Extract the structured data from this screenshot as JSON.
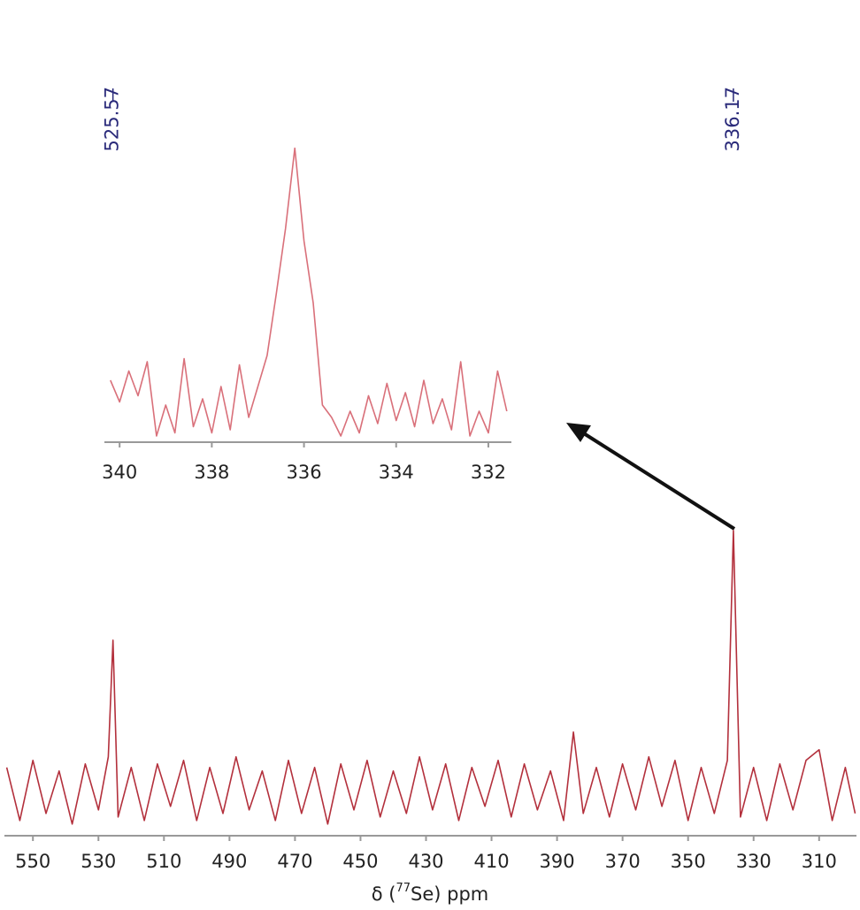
{
  "chart_data": [
    {
      "type": "line",
      "color": "#b3303c",
      "x": [
        558,
        554,
        550,
        546,
        542,
        538,
        534,
        530,
        527,
        525.57,
        524,
        520,
        516,
        512,
        508,
        504,
        500,
        496,
        492,
        488,
        484,
        480,
        476,
        472,
        468,
        464,
        460,
        456,
        452,
        448,
        444,
        440,
        436,
        432,
        428,
        424,
        420,
        416,
        412,
        408,
        404,
        400,
        396,
        392,
        388,
        385,
        382,
        378,
        374,
        370,
        366,
        362,
        358,
        354,
        350,
        346,
        342,
        338,
        336.17,
        334,
        330,
        326,
        322,
        318,
        314,
        310,
        306,
        302,
        299
      ],
      "values": [
        0.6,
        -0.9,
        0.8,
        -0.7,
        0.5,
        -1,
        0.7,
        -0.6,
        0.9,
        4.2,
        -0.8,
        0.6,
        -0.9,
        0.7,
        -0.5,
        0.8,
        -0.9,
        0.6,
        -0.7,
        0.9,
        -0.6,
        0.5,
        -0.9,
        0.8,
        -0.7,
        0.6,
        -1,
        0.7,
        -0.6,
        0.8,
        -0.8,
        0.5,
        -0.7,
        0.9,
        -0.6,
        0.7,
        -0.9,
        0.6,
        -0.5,
        0.8,
        -0.8,
        0.7,
        -0.6,
        0.5,
        -0.9,
        1.6,
        -0.7,
        0.6,
        -0.8,
        0.7,
        -0.6,
        0.9,
        -0.5,
        0.8,
        -0.9,
        0.6,
        -0.7,
        0.8,
        7.3,
        -0.8,
        0.6,
        -0.9,
        0.7,
        -0.6,
        0.8,
        1.1,
        -0.9,
        0.6,
        -0.7
      ],
      "xlim": [
        558.7,
        298.6
      ],
      "ylim": [
        -1.33,
        19.8
      ],
      "xticks": [
        550,
        530,
        510,
        490,
        470,
        450,
        430,
        410,
        390,
        370,
        350,
        330,
        310
      ],
      "peak_labels": [
        525.57,
        336.17
      ],
      "xlabel": {
        "prefix": "δ (",
        "sup": "77",
        "suffix": "Se) ppm"
      }
    },
    {
      "type": "line",
      "color": "#d9707a",
      "x": [
        340.2,
        340.0,
        339.8,
        339.6,
        339.4,
        339.2,
        339.0,
        338.8,
        338.6,
        338.4,
        338.2,
        338.0,
        337.8,
        337.6,
        337.4,
        337.2,
        337.0,
        336.8,
        336.6,
        336.4,
        336.2,
        336.0,
        335.8,
        335.6,
        335.4,
        335.2,
        335.0,
        334.8,
        334.6,
        334.4,
        334.2,
        334.0,
        333.8,
        333.6,
        333.4,
        333.2,
        333.0,
        332.8,
        332.6,
        332.4,
        332.2,
        332.0,
        331.8,
        331.6
      ],
      "values": [
        2.0,
        1.3,
        2.3,
        1.5,
        2.6,
        0.2,
        1.2,
        0.3,
        2.7,
        0.5,
        1.4,
        0.3,
        1.8,
        0.4,
        2.5,
        0.8,
        1.8,
        2.8,
        4.8,
        6.9,
        9.5,
        6.5,
        4.5,
        1.2,
        0.8,
        0.2,
        1.0,
        0.3,
        1.5,
        0.6,
        1.9,
        0.7,
        1.6,
        0.5,
        2.0,
        0.6,
        1.4,
        0.4,
        2.6,
        0.2,
        1.0,
        0.3,
        2.3,
        1.0
      ],
      "xlim": [
        340.33,
        331.5
      ],
      "ylim": [
        0,
        10
      ],
      "xticks": [
        340,
        338,
        336,
        334,
        332
      ]
    }
  ]
}
